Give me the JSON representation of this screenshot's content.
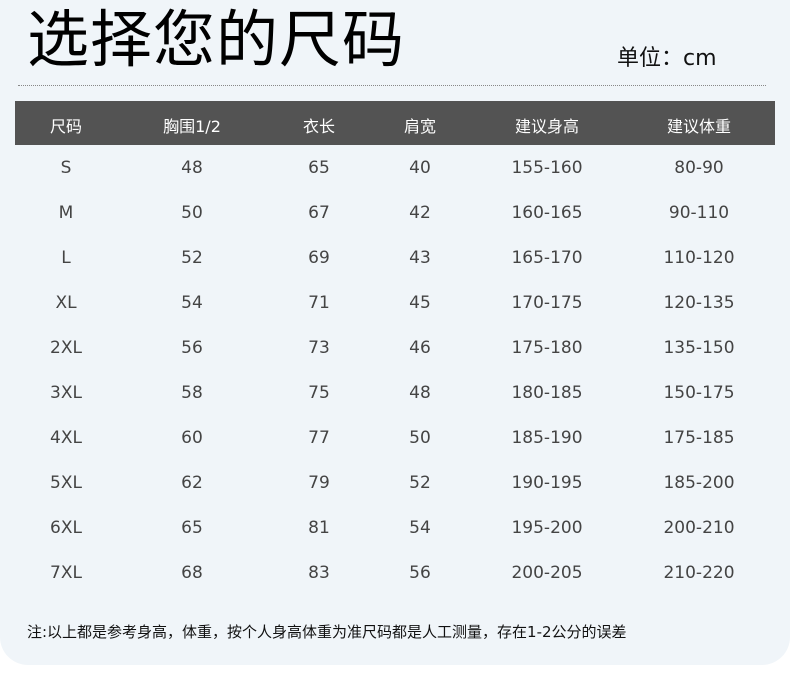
{
  "title": "选择您的尺码",
  "unit": "单位：cm",
  "headers": [
    "尺码",
    "胸围1/2",
    "衣长",
    "肩宽",
    "建议身高",
    "建议体重"
  ],
  "rows": [
    [
      "S",
      "48",
      "65",
      "40",
      "155-160",
      "80-90"
    ],
    [
      "M",
      "50",
      "67",
      "42",
      "160-165",
      "90-110"
    ],
    [
      "L",
      "52",
      "69",
      "43",
      "165-170",
      "110-120"
    ],
    [
      "XL",
      "54",
      "71",
      "45",
      "170-175",
      "120-135"
    ],
    [
      "2XL",
      "56",
      "73",
      "46",
      "175-180",
      "135-150"
    ],
    [
      "3XL",
      "58",
      "75",
      "48",
      "180-185",
      "150-175"
    ],
    [
      "4XL",
      "60",
      "77",
      "50",
      "185-190",
      "175-185"
    ],
    [
      "5XL",
      "62",
      "79",
      "52",
      "190-195",
      "185-200"
    ],
    [
      "6XL",
      "65",
      "81",
      "54",
      "195-200",
      "200-210"
    ],
    [
      "7XL",
      "68",
      "83",
      "56",
      "200-205",
      "210-220"
    ]
  ],
  "note": "注:以上都是参考身高，体重，按个人身高体重为准尺码都是人工测量，存在1-2公分的误差"
}
